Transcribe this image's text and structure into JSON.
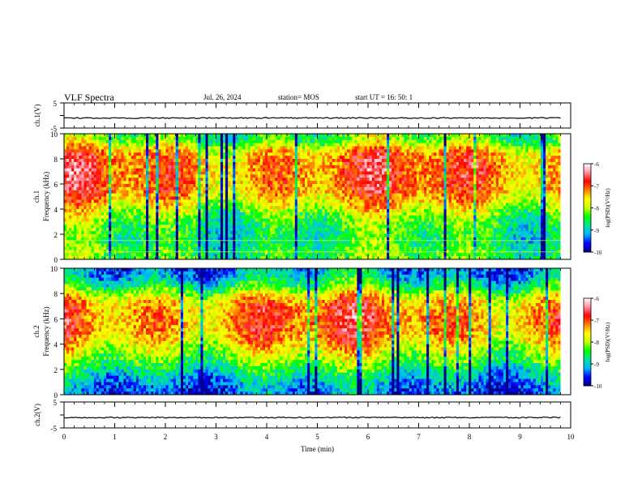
{
  "header": {
    "title": "VLF Spectra",
    "date": "Jul. 26, 2024",
    "station": "station= MOS",
    "start_ut": "start UT = 16: 50: 1"
  },
  "chart_data": [
    {
      "type": "line",
      "panel": "ch1-waveform",
      "ylabel": "ch.1(V)",
      "ylim": [
        -5,
        5
      ],
      "yticks": [
        "5",
        "-5"
      ],
      "x": [
        0,
        9.8
      ],
      "values": [
        -1,
        -1
      ]
    },
    {
      "type": "heatmap",
      "panel": "ch1-spectrogram",
      "ylabel": "ch.1\nFrequency (kHz)",
      "ylim": [
        0,
        10
      ],
      "yticks": [
        "0",
        "2",
        "4",
        "6",
        "8",
        "10"
      ],
      "xlim": [
        0,
        10
      ],
      "data_end_min": 9.8,
      "intensity_profile_freq_khz": [
        0.5,
        1.5,
        2.5,
        3.5,
        4.5,
        5.5,
        6.5,
        7.5,
        8.5,
        9.5
      ],
      "intensity_profile_log_psd": [
        -8.4,
        -8.6,
        -8.5,
        -8.2,
        -7.6,
        -7.2,
        -7.1,
        -7.1,
        -7.3,
        -8.3
      ],
      "colorbar": {
        "label": "log(PSD)(V²/Hz)",
        "min": -10,
        "max": -6,
        "ticks": [
          "-6",
          "-7",
          "-8",
          "-9",
          "-10"
        ]
      }
    },
    {
      "type": "heatmap",
      "panel": "ch2-spectrogram",
      "ylabel": "ch.2\nFrequency (kHz)",
      "ylim": [
        0,
        10
      ],
      "yticks": [
        "0",
        "2",
        "4",
        "6",
        "8",
        "10"
      ],
      "xlim": [
        0,
        10
      ],
      "data_end_min": 9.8,
      "intensity_profile_freq_khz": [
        0.5,
        1.5,
        2.5,
        3.5,
        4.5,
        5.5,
        6.5,
        7.5,
        8.5,
        9.5
      ],
      "intensity_profile_log_psd": [
        -9.3,
        -8.9,
        -8.3,
        -7.8,
        -7.3,
        -7.1,
        -7.1,
        -7.4,
        -8.4,
        -9.1
      ],
      "colorbar": {
        "label": "log(PSD)(V²/Hz)",
        "min": -10,
        "max": -6,
        "ticks": [
          "-6",
          "-7",
          "-8",
          "-9",
          "-10"
        ]
      }
    },
    {
      "type": "line",
      "panel": "ch2-waveform",
      "ylabel": "ch.2(V)",
      "ylim": [
        -5,
        5
      ],
      "yticks": [
        "5",
        "-5"
      ],
      "x": [
        0,
        9.8
      ],
      "values": [
        -1,
        -1
      ]
    }
  ],
  "x_axis": {
    "label": "Time (min)",
    "range": [
      0,
      10
    ],
    "ticks": [
      "0",
      "1",
      "2",
      "3",
      "4",
      "5",
      "6",
      "7",
      "8",
      "9",
      "10"
    ]
  },
  "colors": {
    "colormap": [
      "#000080",
      "#0000ff",
      "#00b4ff",
      "#00e0a0",
      "#00ff00",
      "#c8ff00",
      "#ffff00",
      "#ff8000",
      "#ff0000",
      "#ff90a0",
      "#ffffff"
    ]
  }
}
